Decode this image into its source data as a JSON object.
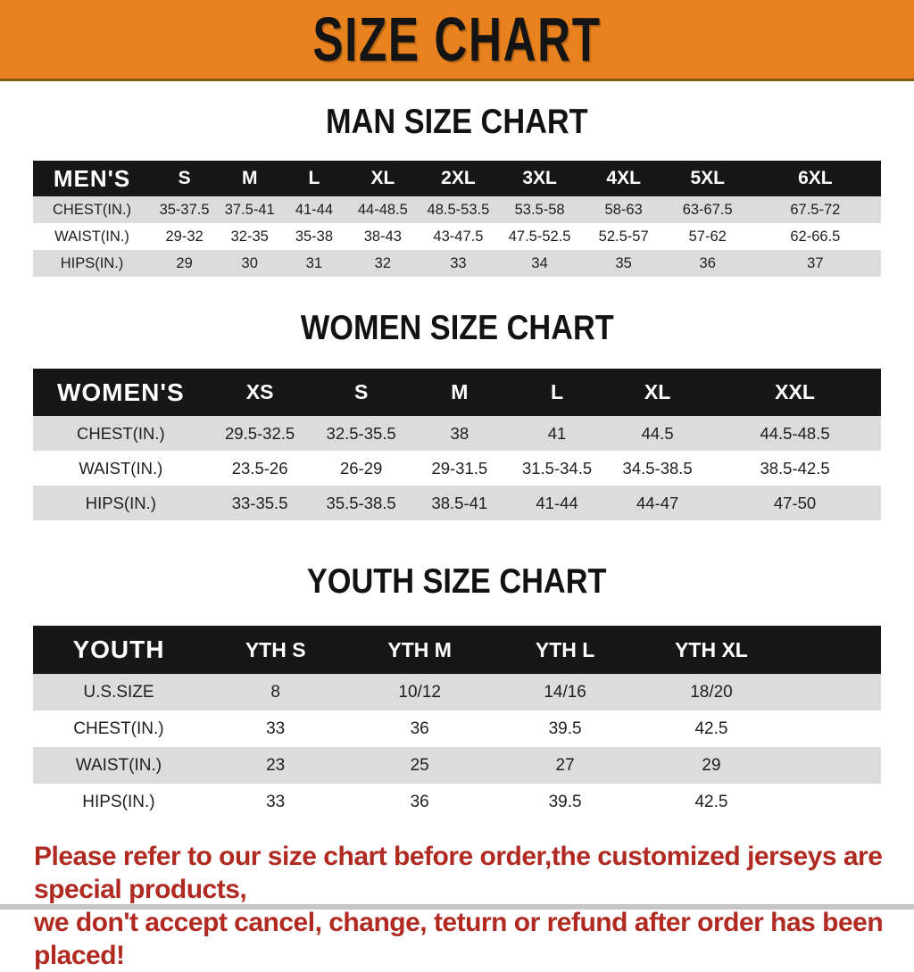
{
  "banner": {
    "title": "SIZE CHART",
    "bg_color": "#E8821F",
    "text_color": "#141414"
  },
  "colors": {
    "header_black": "#171717",
    "stripe_gray": "#DCDCDC",
    "footer_red": "#B02A21"
  },
  "sections": [
    {
      "title": "MAN SIZE CHART",
      "group_label": "MEN'S",
      "columns": [
        "S",
        "M",
        "L",
        "XL",
        "2XL",
        "3XL",
        "4XL",
        "5XL",
        "6XL"
      ],
      "rows": [
        {
          "label": "CHEST(IN.)",
          "values": [
            "35-37.5",
            "37.5-41",
            "41-44",
            "44-48.5",
            "48.5-53.5",
            "53.5-58",
            "58-63",
            "63-67.5",
            "67.5-72"
          ]
        },
        {
          "label": "WAIST(IN.)",
          "values": [
            "29-32",
            "32-35",
            "35-38",
            "38-43",
            "43-47.5",
            "47.5-52.5",
            "52.5-57",
            "57-62",
            "62-66.5"
          ]
        },
        {
          "label": "HIPS(IN.)",
          "values": [
            "29",
            "30",
            "31",
            "32",
            "33",
            "34",
            "35",
            "36",
            "37"
          ]
        }
      ]
    },
    {
      "title": "WOMEN SIZE CHART",
      "group_label": "WOMEN'S",
      "columns": [
        "XS",
        "S",
        "M",
        "L",
        "XL",
        "XXL"
      ],
      "rows": [
        {
          "label": "CHEST(IN.)",
          "values": [
            "29.5-32.5",
            "32.5-35.5",
            "38",
            "41",
            "44.5",
            "44.5-48.5"
          ]
        },
        {
          "label": "WAIST(IN.)",
          "values": [
            "23.5-26",
            "26-29",
            "29-31.5",
            "31.5-34.5",
            "34.5-38.5",
            "38.5-42.5"
          ]
        },
        {
          "label": "HIPS(IN.)",
          "values": [
            "33-35.5",
            "35.5-38.5",
            "38.5-41",
            "41-44",
            "44-47",
            "47-50"
          ]
        }
      ]
    },
    {
      "title": "YOUTH SIZE CHART",
      "group_label": "YOUTH",
      "columns": [
        "YTH S",
        "YTH M",
        "YTH L",
        "YTH XL"
      ],
      "rows": [
        {
          "label": "U.S.SIZE",
          "values": [
            "8",
            "10/12",
            "14/16",
            "18/20"
          ]
        },
        {
          "label": "CHEST(IN.)",
          "values": [
            "33",
            "36",
            "39.5",
            "42.5"
          ]
        },
        {
          "label": "WAIST(IN.)",
          "values": [
            "23",
            "25",
            "27",
            "29"
          ]
        },
        {
          "label": "HIPS(IN.)",
          "values": [
            "33",
            "36",
            "39.5",
            "42.5"
          ]
        }
      ]
    }
  ],
  "footer": {
    "line1": "Please refer to our size chart before order,the customized jerseys are special products,",
    "line2": "we don't accept cancel, change, teturn or refund after order has been placed!",
    "text_color": "#B02A21"
  }
}
